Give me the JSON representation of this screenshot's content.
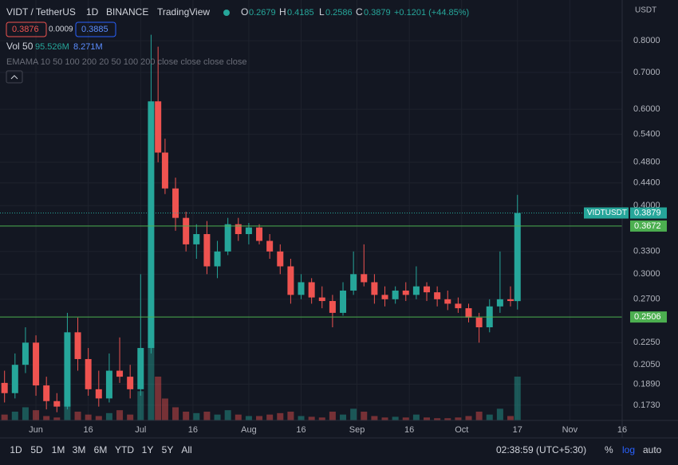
{
  "header": {
    "symbol": "VIDT / TetherUS",
    "interval": "1D",
    "exchange": "BINANCE",
    "source": "TradingView",
    "o_label": "O",
    "h_label": "H",
    "l_label": "L",
    "c_label": "C",
    "change": "+0.1201 (+44.85%)",
    "sell": "0.3876",
    "spread": "0.0009",
    "buy": "0.3885",
    "vol_label": "Vol 50",
    "vol_value": "95.526M",
    "vol_ma": "8.271M",
    "ema_label": "EMAMA 10 50 100 200 20 50 100 200 close close close close",
    "currency": "USDT"
  },
  "chart_data": {
    "type": "candlestick",
    "symbol_label": "VIDTUSDT",
    "up_color": "#26a69a",
    "down_color": "#ef5350",
    "log_scale": true,
    "grid": true,
    "x": [
      1,
      4,
      7,
      10,
      13,
      16,
      19,
      22,
      25,
      28,
      31,
      34,
      37,
      40,
      43,
      45,
      47,
      50,
      53,
      56,
      59,
      62,
      65,
      68,
      71,
      74,
      77,
      80,
      83,
      86,
      89,
      92,
      95,
      98,
      101,
      104,
      107,
      110,
      113,
      116,
      119,
      122,
      125,
      128,
      131,
      134,
      137,
      140,
      143,
      146,
      148
    ],
    "open": [
      0.19,
      0.182,
      0.205,
      0.225,
      0.188,
      0.176,
      0.172,
      0.235,
      0.21,
      0.185,
      0.178,
      0.2,
      0.195,
      0.185,
      0.22,
      0.62,
      0.5,
      0.43,
      0.38,
      0.34,
      0.355,
      0.31,
      0.33,
      0.37,
      0.355,
      0.365,
      0.345,
      0.33,
      0.31,
      0.275,
      0.29,
      0.272,
      0.268,
      0.255,
      0.28,
      0.3,
      0.29,
      0.275,
      0.27,
      0.28,
      0.275,
      0.285,
      0.278,
      0.27,
      0.265,
      0.26,
      0.25,
      0.24,
      0.262,
      0.27,
      0.2679
    ],
    "high": [
      0.2,
      0.215,
      0.24,
      0.232,
      0.195,
      0.182,
      0.255,
      0.25,
      0.22,
      0.2,
      0.215,
      0.23,
      0.205,
      0.3,
      0.82,
      0.78,
      0.53,
      0.45,
      0.39,
      0.37,
      0.375,
      0.345,
      0.38,
      0.38,
      0.372,
      0.37,
      0.355,
      0.34,
      0.32,
      0.3,
      0.295,
      0.285,
      0.275,
      0.29,
      0.33,
      0.34,
      0.3,
      0.285,
      0.285,
      0.29,
      0.31,
      0.29,
      0.285,
      0.28,
      0.272,
      0.265,
      0.255,
      0.27,
      0.33,
      0.285,
      0.4185
    ],
    "low": [
      0.175,
      0.178,
      0.198,
      0.18,
      0.17,
      0.168,
      0.17,
      0.2,
      0.18,
      0.172,
      0.175,
      0.19,
      0.178,
      0.18,
      0.215,
      0.48,
      0.42,
      0.36,
      0.33,
      0.32,
      0.3,
      0.295,
      0.325,
      0.345,
      0.34,
      0.34,
      0.32,
      0.3,
      0.265,
      0.27,
      0.265,
      0.26,
      0.24,
      0.252,
      0.275,
      0.285,
      0.265,
      0.262,
      0.265,
      0.268,
      0.27,
      0.268,
      0.262,
      0.258,
      0.255,
      0.245,
      0.225,
      0.235,
      0.255,
      0.262,
      0.2586
    ],
    "close": [
      0.182,
      0.205,
      0.225,
      0.188,
      0.176,
      0.172,
      0.235,
      0.21,
      0.185,
      0.178,
      0.2,
      0.195,
      0.185,
      0.22,
      0.62,
      0.5,
      0.43,
      0.38,
      0.34,
      0.355,
      0.31,
      0.33,
      0.37,
      0.355,
      0.365,
      0.345,
      0.33,
      0.31,
      0.275,
      0.29,
      0.272,
      0.268,
      0.255,
      0.28,
      0.3,
      0.29,
      0.275,
      0.27,
      0.28,
      0.275,
      0.285,
      0.278,
      0.27,
      0.265,
      0.26,
      0.25,
      0.24,
      0.262,
      0.27,
      0.268,
      0.3879
    ],
    "volume": [
      40,
      60,
      90,
      70,
      30,
      20,
      110,
      60,
      40,
      30,
      50,
      70,
      40,
      200,
      720,
      300,
      150,
      90,
      60,
      50,
      60,
      40,
      70,
      40,
      30,
      30,
      40,
      50,
      60,
      30,
      25,
      20,
      60,
      40,
      80,
      60,
      30,
      20,
      25,
      20,
      40,
      20,
      15,
      15,
      20,
      30,
      60,
      40,
      80,
      30,
      300
    ],
    "volume_lim": [
      0,
      1200
    ],
    "xlim": [
      -0.3,
      178
    ],
    "xticks": [
      {
        "value": 10,
        "label": "Jun"
      },
      {
        "value": 25,
        "label": "16"
      },
      {
        "value": 40,
        "label": "Jul"
      },
      {
        "value": 55,
        "label": "16"
      },
      {
        "value": 71,
        "label": "Aug"
      },
      {
        "value": 86,
        "label": "16"
      },
      {
        "value": 102,
        "label": "Sep"
      },
      {
        "value": 117,
        "label": "16"
      },
      {
        "value": 132,
        "label": "Oct"
      },
      {
        "value": 148,
        "label": "17"
      },
      {
        "value": 163,
        "label": "Nov"
      },
      {
        "value": 178,
        "label": "16"
      }
    ],
    "ylim": [
      0.1623,
      0.949
    ],
    "yticks": [
      {
        "value": 0.8,
        "label": "0.8000"
      },
      {
        "value": 0.7,
        "label": "0.7000"
      },
      {
        "value": 0.6,
        "label": "0.6000"
      },
      {
        "value": 0.54,
        "label": "0.5400"
      },
      {
        "value": 0.48,
        "label": "0.4800"
      },
      {
        "value": 0.44,
        "label": "0.4400"
      },
      {
        "value": 0.4,
        "label": "0.4000"
      },
      {
        "value": 0.33,
        "label": "0.3300"
      },
      {
        "value": 0.3,
        "label": "0.3000"
      },
      {
        "value": 0.27,
        "label": "0.2700"
      },
      {
        "value": 0.225,
        "label": "0.2250"
      },
      {
        "value": 0.205,
        "label": "0.2050"
      },
      {
        "value": 0.189,
        "label": "0.1890"
      },
      {
        "value": 0.173,
        "label": "0.1730"
      }
    ],
    "lines": [
      0.3672,
      0.2506
    ]
  },
  "toolbar": {
    "ranges": [
      "1D",
      "5D",
      "1M",
      "3M",
      "6M",
      "YTD",
      "1Y",
      "5Y",
      "All"
    ],
    "clock": "02:38:59 (UTC+5:30)",
    "percent": "%",
    "log": "log",
    "auto": "auto"
  }
}
